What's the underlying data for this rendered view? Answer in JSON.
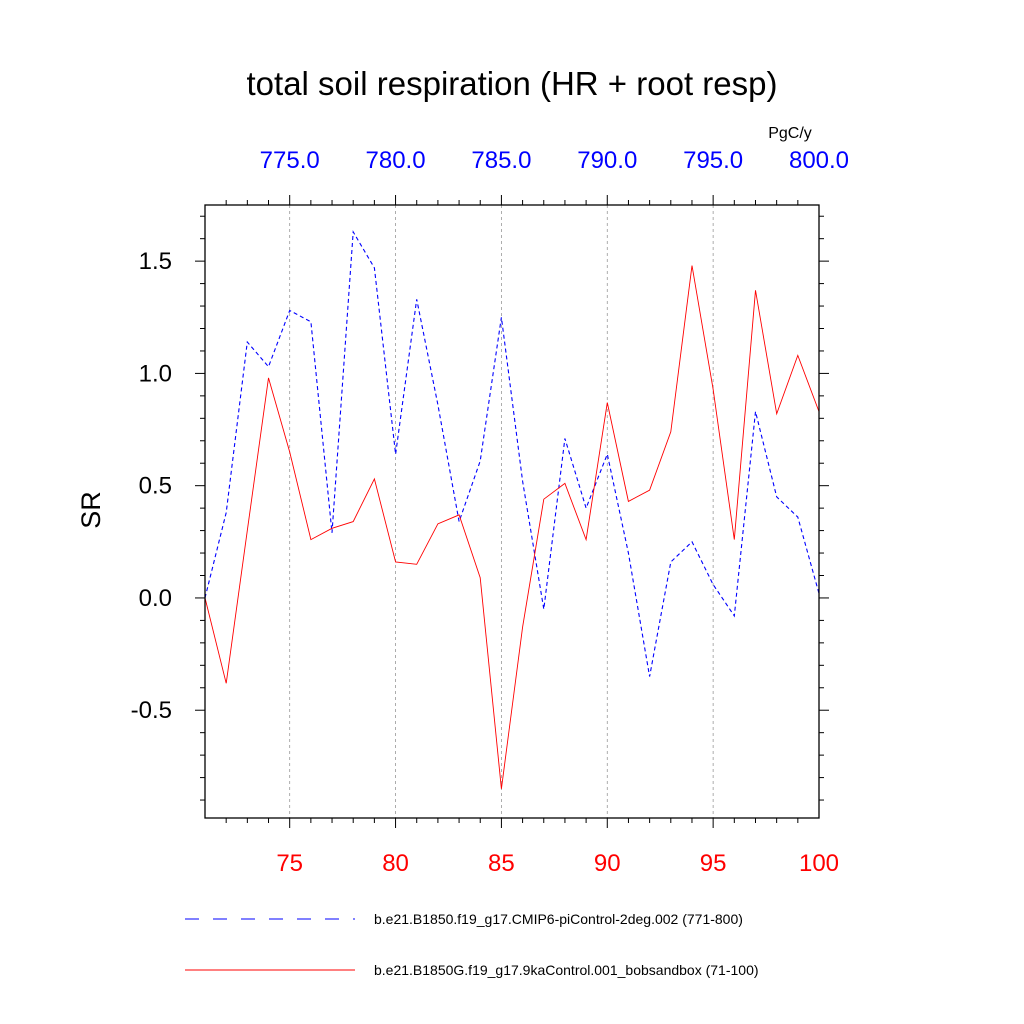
{
  "chart_data": {
    "type": "line",
    "title": "total soil respiration (HR + root resp)",
    "units_label": "PgC/y",
    "ylabel": "SR",
    "ylim": [
      -0.98,
      1.75
    ],
    "yticks": [
      "1.5",
      "1.0",
      "0.5",
      "0.0",
      "-0.5"
    ],
    "ytick_values": [
      1.5,
      1.0,
      0.5,
      0.0,
      -0.5
    ],
    "x_bottom": {
      "range": [
        71,
        100
      ],
      "ticks": [
        "75",
        "80",
        "85",
        "90",
        "95",
        "100"
      ],
      "tick_values": [
        75,
        80,
        85,
        90,
        95,
        100
      ],
      "color": "#ff0000"
    },
    "x_top": {
      "range": [
        771,
        800
      ],
      "ticks": [
        "775.0",
        "780.0",
        "785.0",
        "790.0",
        "795.0",
        "800.0"
      ],
      "tick_values": [
        775,
        780,
        785,
        790,
        795,
        800
      ],
      "color": "#0000ff"
    },
    "grid": "vertical dotted at major ticks",
    "series": [
      {
        "name": "b.e21.B1850.f19_g17.CMIP6-piControl-2deg.002 (771-800)",
        "color": "#0000ff",
        "style": "dashed",
        "x": [
          71,
          72,
          73,
          74,
          75,
          76,
          77,
          78,
          79,
          80,
          81,
          82,
          83,
          84,
          85,
          86,
          87,
          88,
          89,
          90,
          91,
          92,
          93,
          94,
          95,
          96,
          97,
          98,
          99,
          100
        ],
        "values": [
          0.0,
          0.38,
          1.14,
          1.03,
          1.28,
          1.23,
          0.29,
          1.63,
          1.47,
          0.64,
          1.33,
          0.86,
          0.34,
          0.61,
          1.25,
          0.52,
          -0.05,
          0.71,
          0.4,
          0.64,
          0.2,
          -0.35,
          0.16,
          0.25,
          0.06,
          -0.08,
          0.83,
          0.45,
          0.36,
          0.02
        ]
      },
      {
        "name": "b.e21.B1850G.f19_g17.9kaControl.001_bobsandbox (71-100)",
        "color": "#ff0000",
        "style": "solid",
        "x": [
          71,
          72,
          73,
          74,
          75,
          76,
          77,
          78,
          79,
          80,
          81,
          82,
          83,
          84,
          85,
          86,
          87,
          88,
          89,
          90,
          91,
          92,
          93,
          94,
          95,
          96,
          97,
          98,
          99,
          100
        ],
        "values": [
          0.0,
          -0.38,
          0.3,
          0.98,
          0.65,
          0.26,
          0.31,
          0.34,
          0.53,
          0.16,
          0.15,
          0.33,
          0.37,
          0.09,
          -0.85,
          -0.13,
          0.44,
          0.51,
          0.26,
          0.87,
          0.43,
          0.48,
          0.74,
          1.48,
          0.93,
          0.26,
          1.37,
          0.82,
          1.08,
          0.83
        ]
      }
    ]
  }
}
